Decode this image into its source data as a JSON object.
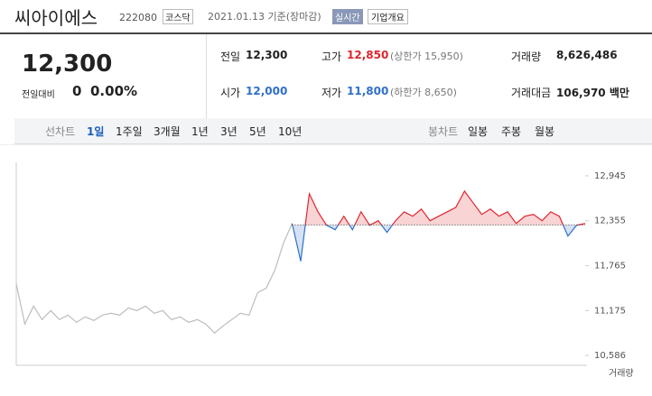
{
  "header": {
    "title": "씨아이에스",
    "code": "222080",
    "market": "코스닥",
    "date": "2021.01.13 기준(장마감)",
    "realtime": "실시간",
    "company": "기업개요"
  },
  "summary": {
    "price": "12,300",
    "change_label": "전일대비",
    "change": "0",
    "change_rate": "0.00%",
    "rows": [
      [
        {
          "label": "전일",
          "value": "12,300"
        },
        {
          "label": "고가",
          "value": "12,850",
          "note": "(상한가 15,950)"
        },
        {
          "label": "거래량",
          "value": "8,626,486"
        }
      ],
      [
        {
          "label": "시가",
          "value": "12,000"
        },
        {
          "label": "저가",
          "value": "11,800",
          "note": "(하한가 8,650)"
        },
        {
          "label": "거래대금",
          "value": "106,970 백만"
        }
      ]
    ]
  },
  "tabs": {
    "line_label": "선차트",
    "line": [
      "1일",
      "1주일",
      "3개월",
      "1년",
      "3년",
      "5년",
      "10년"
    ],
    "candle_label": "봉차트",
    "candle": [
      "일봉",
      "주봉",
      "월봉"
    ]
  },
  "chart_data": {
    "type": "line",
    "baseline": 12300,
    "up_color": "#e0262e",
    "down_color": "#2f6fc9",
    "volume_label": "거래량",
    "ylim": [
      10492,
      13098
    ],
    "yticks": [
      {
        "value": 10586,
        "label": "10,586"
      },
      {
        "value": 11175,
        "label": "11,175"
      },
      {
        "value": 11765,
        "label": "11,765"
      },
      {
        "value": 12355,
        "label": "12,355"
      },
      {
        "value": 12945,
        "label": "12,945"
      }
    ],
    "series": [
      {
        "color": "#bdbdbd",
        "values": [
          11529,
          10998,
          11234,
          11057,
          11175,
          11057,
          11116,
          11021,
          11092,
          11045,
          11116,
          11140,
          11116,
          11210,
          11175,
          11234,
          11140,
          11175,
          11057,
          11092,
          11021,
          11057,
          10998,
          10880,
          10974,
          11057,
          11140,
          11116,
          11411,
          11470,
          11706,
          12060,
          12320,
          null,
          null,
          null,
          null,
          null,
          null,
          null,
          null,
          null,
          null,
          null,
          null,
          null,
          null,
          null,
          null,
          null,
          null,
          null,
          null,
          null,
          null,
          null,
          null,
          null,
          null,
          null,
          null,
          null,
          null,
          null,
          null,
          null,
          null
        ]
      },
      {
        "color": "gradient",
        "values": [
          null,
          null,
          null,
          null,
          null,
          null,
          null,
          null,
          null,
          null,
          null,
          null,
          null,
          null,
          null,
          null,
          null,
          null,
          null,
          null,
          null,
          null,
          null,
          null,
          null,
          null,
          null,
          null,
          null,
          null,
          null,
          null,
          12320,
          11824,
          12709,
          12473,
          12296,
          12237,
          12414,
          12237,
          12473,
          12296,
          12355,
          12202,
          12355,
          12473,
          12414,
          12508,
          12355,
          12414,
          12473,
          12532,
          12744,
          12591,
          12438,
          12508,
          12414,
          12473,
          12320,
          12414,
          12438,
          12355,
          12473,
          12414,
          12154,
          12296,
          12320
        ]
      }
    ]
  }
}
